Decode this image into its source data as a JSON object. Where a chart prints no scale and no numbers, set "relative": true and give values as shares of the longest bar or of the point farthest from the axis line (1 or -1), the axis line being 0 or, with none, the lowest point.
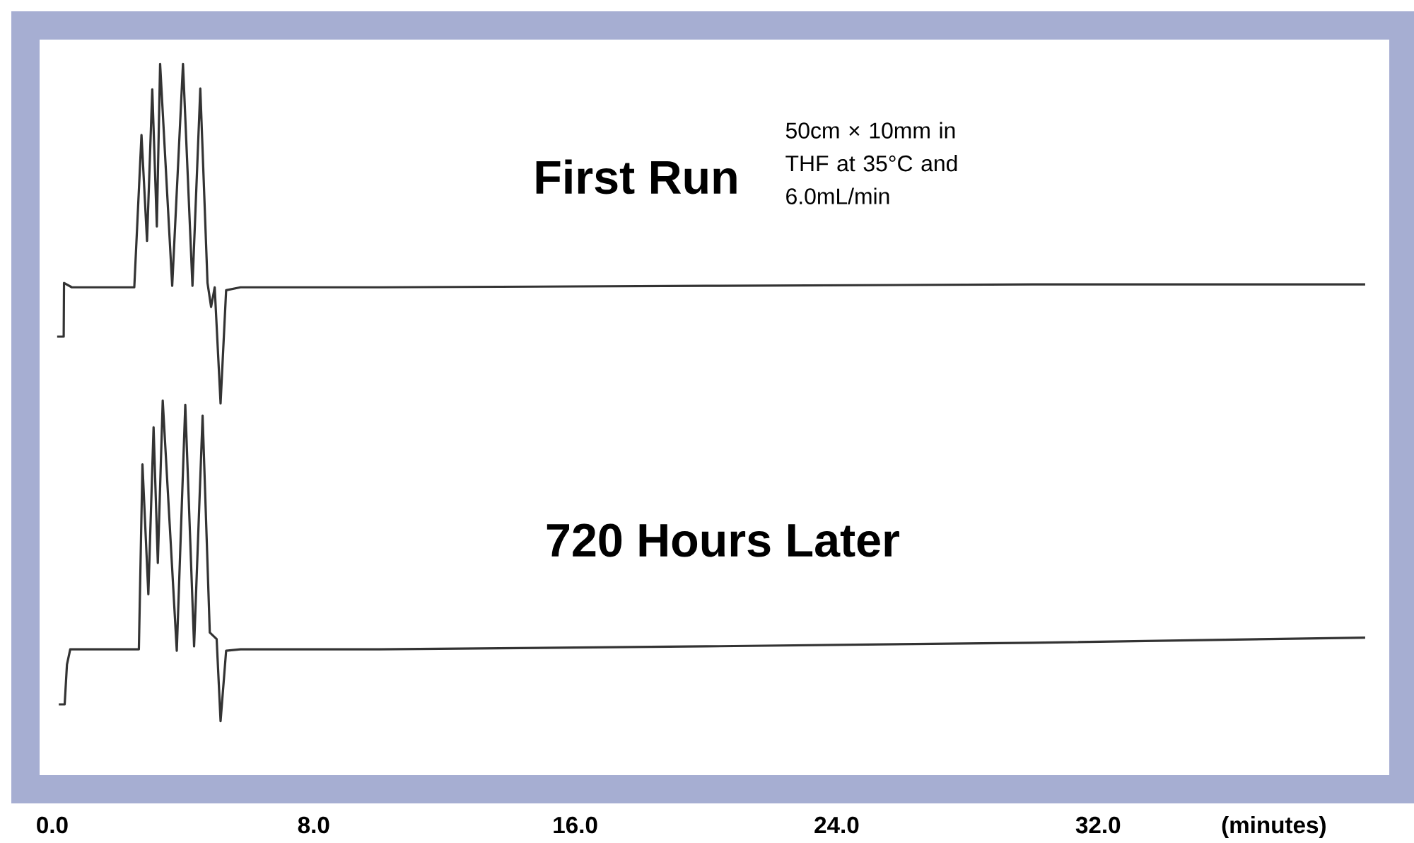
{
  "chart_data": {
    "type": "line",
    "relative": true,
    "xlim": [
      -0.82,
      41.34
    ],
    "xticks": [
      {
        "value": 0,
        "label": "0.0"
      },
      {
        "value": 8,
        "label": "8.0"
      },
      {
        "value": 16,
        "label": "16.0"
      },
      {
        "value": 24,
        "label": "24.0"
      },
      {
        "value": 32,
        "label": "32.0"
      }
    ],
    "xlabel": "(minutes)",
    "annotations": [
      "50cm × 10mm in THF at 35°C and 6.0mL/min"
    ],
    "series": [
      {
        "name": "First Run",
        "color": "#333333",
        "x": [
          0.15,
          0.35,
          0.36,
          0.6,
          2.51,
          2.73,
          2.9,
          3.06,
          3.2,
          3.3,
          3.67,
          4.0,
          4.29,
          4.53,
          4.75,
          4.86,
          4.97,
          5.15,
          5.32,
          5.76,
          10,
          20,
          30,
          40.17
        ],
        "values": [
          0.624,
          0.624,
          0.698,
          0.692,
          0.692,
          0.902,
          0.756,
          0.965,
          0.776,
          1.0,
          0.694,
          1.0,
          0.694,
          0.966,
          0.698,
          0.665,
          0.692,
          0.532,
          0.688,
          0.692,
          0.692,
          0.694,
          0.696,
          0.696
        ]
      },
      {
        "name": "720 Hours Later",
        "color": "#333333",
        "x": [
          0.2,
          0.38,
          0.45,
          0.55,
          2.65,
          2.76,
          2.94,
          3.1,
          3.23,
          3.38,
          3.81,
          4.07,
          4.34,
          4.6,
          4.82,
          5.03,
          5.15,
          5.32,
          5.76,
          10,
          20,
          30,
          40.17
        ],
        "values": [
          0.117,
          0.117,
          0.172,
          0.193,
          0.193,
          0.448,
          0.269,
          0.499,
          0.312,
          0.536,
          0.191,
          0.53,
          0.197,
          0.515,
          0.216,
          0.207,
          0.094,
          0.191,
          0.193,
          0.193,
          0.197,
          0.202,
          0.209
        ]
      }
    ]
  }
}
